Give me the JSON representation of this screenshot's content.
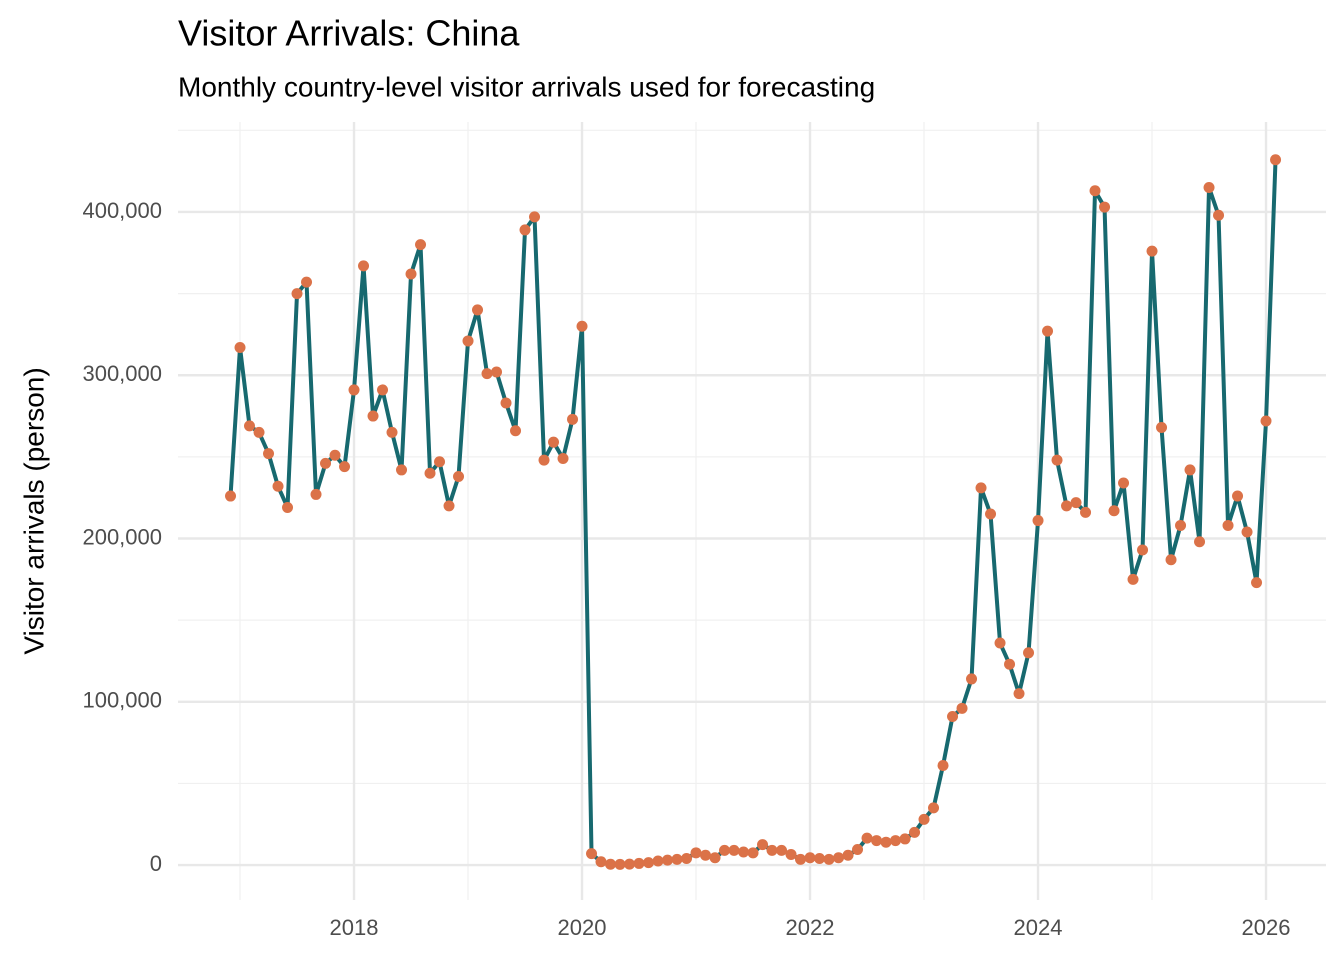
{
  "chart_data": {
    "type": "line",
    "title": "Visitor Arrivals: China",
    "subtitle": "Monthly country-level visitor arrivals used for forecasting",
    "y_label": "Visitor arrivals (person)",
    "x": [
      "2016-12",
      "2017-01",
      "2017-02",
      "2017-03",
      "2017-04",
      "2017-05",
      "2017-06",
      "2017-07",
      "2017-08",
      "2017-09",
      "2017-10",
      "2017-11",
      "2017-12",
      "2018-01",
      "2018-02",
      "2018-03",
      "2018-04",
      "2018-05",
      "2018-06",
      "2018-07",
      "2018-08",
      "2018-09",
      "2018-10",
      "2018-11",
      "2018-12",
      "2019-01",
      "2019-02",
      "2019-03",
      "2019-04",
      "2019-05",
      "2019-06",
      "2019-07",
      "2019-08",
      "2019-09",
      "2019-10",
      "2019-11",
      "2019-12",
      "2020-01",
      "2020-02",
      "2020-03",
      "2020-04",
      "2020-05",
      "2020-06",
      "2020-07",
      "2020-08",
      "2020-09",
      "2020-10",
      "2020-11",
      "2020-12",
      "2021-01",
      "2021-02",
      "2021-03",
      "2021-04",
      "2021-05",
      "2021-06",
      "2021-07",
      "2021-08",
      "2021-09",
      "2021-10",
      "2021-11",
      "2021-12",
      "2022-01",
      "2022-02",
      "2022-03",
      "2022-04",
      "2022-05",
      "2022-06",
      "2022-07",
      "2022-08",
      "2022-09",
      "2022-10",
      "2022-11",
      "2022-12",
      "2023-01",
      "2023-02",
      "2023-03",
      "2023-04",
      "2023-05",
      "2023-06",
      "2023-07",
      "2023-08",
      "2023-09",
      "2023-10",
      "2023-11",
      "2023-12",
      "2024-01",
      "2024-02",
      "2024-03",
      "2024-04",
      "2024-05",
      "2024-06",
      "2024-07",
      "2024-08",
      "2024-09",
      "2024-10",
      "2024-11",
      "2024-12",
      "2025-01",
      "2025-02",
      "2025-03",
      "2025-04",
      "2025-05",
      "2025-06",
      "2025-07",
      "2025-08",
      "2025-09",
      "2025-10",
      "2025-11",
      "2025-12",
      "2026-01",
      "2026-02"
    ],
    "values": [
      226000,
      317000,
      269000,
      265000,
      252000,
      232000,
      219000,
      350000,
      357000,
      227000,
      246000,
      251000,
      244000,
      291000,
      367000,
      275000,
      291000,
      265000,
      242000,
      362000,
      380000,
      240000,
      247000,
      220000,
      238000,
      321000,
      340000,
      301000,
      302000,
      283000,
      266000,
      389000,
      397000,
      248000,
      259000,
      249000,
      273000,
      330000,
      7000,
      2000,
      500,
      400,
      600,
      1000,
      1500,
      2500,
      3000,
      3500,
      4000,
      7500,
      6000,
      4500,
      9000,
      9000,
      8000,
      7500,
      12500,
      9000,
      9000,
      6500,
      3500,
      4500,
      4000,
      3500,
      4500,
      6000,
      9500,
      16500,
      15000,
      14000,
      15000,
      16000,
      20000,
      28000,
      35000,
      61000,
      91000,
      96000,
      114000,
      231000,
      215000,
      136000,
      123000,
      105000,
      130000,
      211000,
      327000,
      248000,
      220000,
      222000,
      216000,
      413000,
      403000,
      217000,
      234000,
      175000,
      193000,
      376000,
      268000,
      187000,
      208000,
      242000,
      198000,
      415000,
      398000,
      208000,
      226000,
      204000,
      173000,
      272000,
      432000
    ],
    "color": "#17696f",
    "point_color": "#db7248",
    "xlim": [
      2016.456,
      2026.526
    ],
    "xticks": [
      2018,
      2020,
      2022,
      2024,
      2026
    ],
    "xminor": [
      2017,
      2019,
      2021,
      2023,
      2025
    ],
    "ylim": [
      -21400,
      455100
    ],
    "yticks": [
      0,
      {
        "value": 100000,
        "label": "100,000"
      },
      {
        "value": 200000,
        "label": "200,000"
      },
      {
        "value": 300000,
        "label": "300,000"
      },
      {
        "value": 400000,
        "label": "400,000"
      }
    ],
    "yminor": [
      50000,
      150000,
      250000,
      350000,
      450000
    ],
    "grid": true
  }
}
